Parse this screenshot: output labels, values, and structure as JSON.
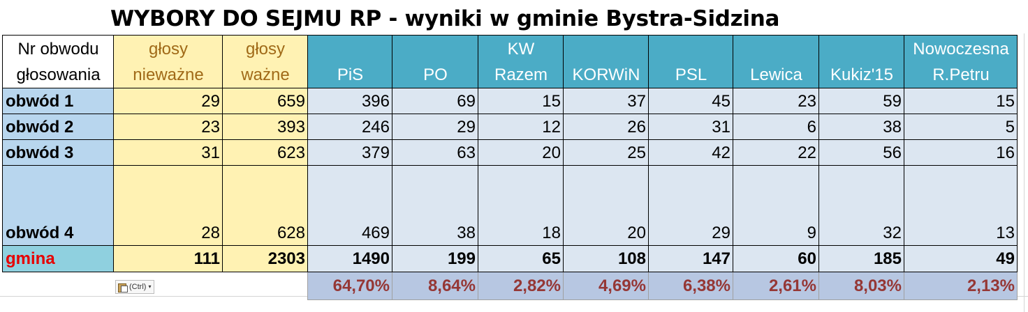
{
  "title": "WYBORY DO SEJMU RP - wyniki w gminie Bystra-Sidzina",
  "header": {
    "label_line1": "Nr obwodu",
    "label_line2": "głosowania",
    "invalid_line1": "głosy",
    "invalid_line2": "nieważne",
    "valid_line1": "głosy",
    "valid_line2": "ważne",
    "parties": [
      {
        "line1": "",
        "line2": "PiS"
      },
      {
        "line1": "",
        "line2": "PO"
      },
      {
        "line1": "KW",
        "line2": "Razem"
      },
      {
        "line1": "",
        "line2": "KORWiN"
      },
      {
        "line1": "",
        "line2": "PSL"
      },
      {
        "line1": "",
        "line2": "Lewica"
      },
      {
        "line1": "",
        "line2": "Kukiz'15"
      },
      {
        "line1": "Nowoczesna",
        "line2": "R.Petru"
      }
    ]
  },
  "rows": [
    {
      "label": "obwód 1",
      "invalid": "29",
      "valid": "659",
      "votes": [
        "396",
        "69",
        "15",
        "37",
        "45",
        "23",
        "59",
        "15"
      ]
    },
    {
      "label": "obwód 2",
      "invalid": "23",
      "valid": "393",
      "votes": [
        "246",
        "29",
        "12",
        "26",
        "31",
        "6",
        "38",
        "5"
      ]
    },
    {
      "label": "obwód 3",
      "invalid": "31",
      "valid": "623",
      "votes": [
        "379",
        "63",
        "20",
        "25",
        "42",
        "22",
        "56",
        "16"
      ]
    },
    {
      "label": "obwód 4",
      "invalid": "28",
      "valid": "628",
      "votes": [
        "469",
        "38",
        "18",
        "20",
        "29",
        "9",
        "32",
        "13"
      ]
    }
  ],
  "total": {
    "label": "gmina",
    "invalid": "111",
    "valid": "2303",
    "votes": [
      "1490",
      "199",
      "65",
      "108",
      "147",
      "60",
      "185",
      "49"
    ]
  },
  "percentages": [
    "64,70%",
    "8,64%",
    "2,82%",
    "4,69%",
    "6,38%",
    "2,61%",
    "8,03%",
    "2,13%"
  ],
  "paste_options": {
    "label": "(Ctrl)",
    "icon": "clipboard-icon"
  },
  "colors": {
    "party_header": "#4bacc6",
    "label_column": "#b8d6ee",
    "yellow_columns": "#fff2b3",
    "value_cells": "#dce6f1",
    "total_label_text": "#e60000",
    "percent_text": "#953735"
  }
}
